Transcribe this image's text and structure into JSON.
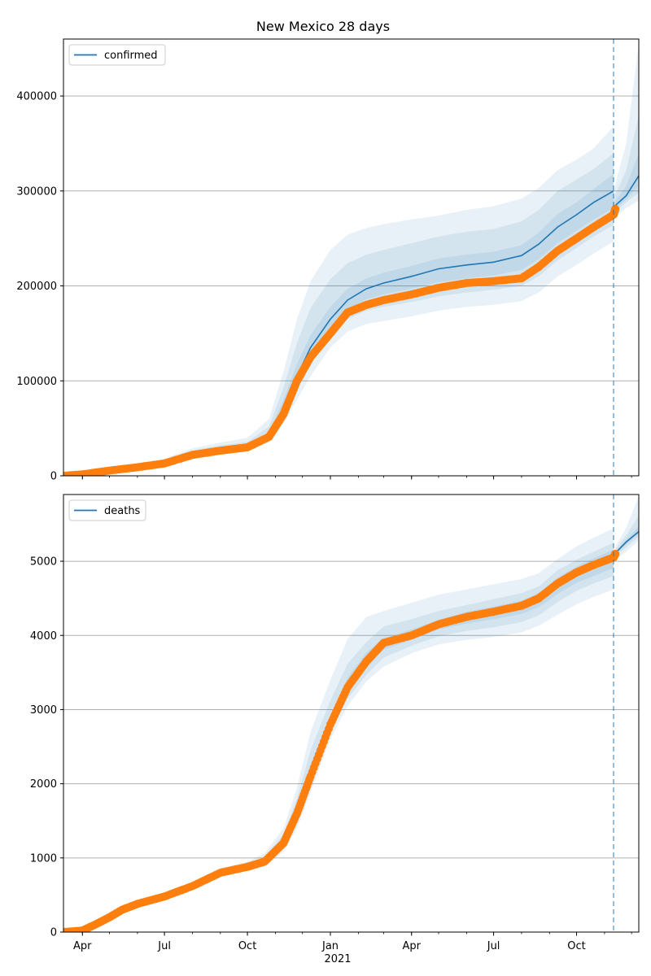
{
  "chart_data": {
    "type": "line",
    "title": "New Mexico 28 days",
    "x_axis": {
      "domain": [
        "2020-03-11",
        "2021-12-09"
      ],
      "tick_labels": [
        "Apr",
        "Jul",
        "Oct",
        "Jan",
        "Apr",
        "Jul",
        "Oct"
      ],
      "tick_dates": [
        "2020-04-01",
        "2020-07-01",
        "2020-10-01",
        "2021-01-01",
        "2021-04-01",
        "2021-07-01",
        "2021-10-01"
      ],
      "year_label": "2021",
      "forecast_start": "2021-11-11"
    },
    "panels": [
      {
        "legend": "confirmed",
        "legend_position": "upper left",
        "grid": "horizontal",
        "ylim": [
          0,
          460000
        ],
        "yticks": [
          0,
          100000,
          200000,
          300000,
          400000
        ],
        "ytick_labels": [
          "0",
          "100000",
          "200000",
          "300000",
          "400000"
        ],
        "model": {
          "dates": [
            "2020-03-11",
            "2020-04-01",
            "2020-05-01",
            "2020-06-01",
            "2020-07-01",
            "2020-08-01",
            "2020-09-01",
            "2020-10-01",
            "2020-10-25",
            "2020-11-10",
            "2020-11-25",
            "2020-12-10",
            "2021-01-01",
            "2021-01-20",
            "2021-02-10",
            "2021-03-01",
            "2021-04-01",
            "2021-05-01",
            "2021-06-01",
            "2021-07-01",
            "2021-08-01",
            "2021-08-20",
            "2021-09-10",
            "2021-10-01",
            "2021-10-20",
            "2021-11-11"
          ],
          "values": [
            0,
            1500,
            6000,
            9500,
            14000,
            23000,
            27500,
            31000,
            42000,
            72000,
            105000,
            135000,
            165000,
            185000,
            197000,
            203000,
            210000,
            218000,
            222000,
            225000,
            232000,
            244000,
            262000,
            275000,
            288000,
            300000
          ]
        },
        "forecast": {
          "dates": [
            "2021-11-11",
            "2021-11-25",
            "2021-12-09"
          ],
          "values": [
            283000,
            295000,
            316000
          ]
        },
        "observed": {
          "dates": [
            "2020-03-11",
            "2020-04-01",
            "2020-05-01",
            "2020-06-01",
            "2020-07-01",
            "2020-08-01",
            "2020-09-01",
            "2020-10-01",
            "2020-10-25",
            "2020-11-10",
            "2020-11-25",
            "2020-12-10",
            "2021-01-01",
            "2021-01-20",
            "2021-02-10",
            "2021-03-01",
            "2021-04-01",
            "2021-05-01",
            "2021-06-01",
            "2021-07-01",
            "2021-08-01",
            "2021-08-20",
            "2021-09-10",
            "2021-10-01",
            "2021-10-20",
            "2021-11-11",
            "2021-11-13"
          ],
          "values": [
            0,
            1500,
            5500,
            9000,
            13000,
            22000,
            26500,
            30000,
            41000,
            65000,
            100000,
            125000,
            150000,
            172000,
            180000,
            185000,
            191000,
            198000,
            203000,
            205000,
            208000,
            220000,
            237000,
            250000,
            262000,
            275000,
            281000
          ]
        },
        "bands": [
          {
            "lower": [
              0,
              800,
              4000,
              7500,
              12000,
              20000,
              24500,
              27500,
              36000,
              55000,
              80000,
              105000,
              135000,
              152000,
              160000,
              163000,
              168000,
              174000,
              178000,
              180000,
              184000,
              193000,
              210000,
              222000,
              234000,
              247000
            ],
            "upper": [
              0,
              2500,
              8500,
              13000,
              18000,
              29000,
              35000,
              40000,
              60000,
              110000,
              165000,
              205000,
              238000,
              254000,
              261000,
              265000,
              270000,
              274000,
              280000,
              284000,
              292000,
              303000,
              322000,
              333000,
              345000,
              368000
            ]
          },
          {
            "lower": [
              0,
              1000,
              4600,
              8200,
              12800,
              21000,
              25500,
              28800,
              38500,
              61000,
              90000,
              117000,
              148000,
              165000,
              174000,
              178000,
              183000,
              189000,
              193000,
              196000,
              200000,
              210000,
              227000,
              240000,
              252000,
              264000
            ],
            "upper": [
              0,
              2200,
              7600,
              11600,
              16800,
              26700,
              32000,
              35800,
              52000,
              93000,
              140000,
              177000,
              207000,
              224000,
              233000,
              238000,
              245000,
              252000,
              257000,
              260000,
              268000,
              280000,
              300000,
              312000,
              323000,
              340000
            ]
          },
          {
            "lower": [
              0,
              1200,
              5100,
              8700,
              13300,
              21800,
              26300,
              29800,
              40000,
              66000,
              97000,
              126000,
              156000,
              175000,
              186000,
              191000,
              197000,
              204000,
              208000,
              211000,
              217000,
              228000,
              245000,
              258000,
              270000,
              282000
            ],
            "upper": [
              0,
              1800,
              6900,
              10500,
              15300,
              24600,
              29300,
              32600,
              46000,
              80000,
              118000,
              148000,
              178000,
              197000,
              208000,
              214000,
              221000,
              229000,
              233000,
              236000,
              243000,
              256000,
              276000,
              288000,
              302000,
              318000
            ]
          }
        ],
        "forecast_bands": [
          {
            "lower": [
              270000,
              282000,
              290000
            ],
            "upper": [
              300000,
              350000,
              455000
            ]
          },
          {
            "lower": [
              276000,
              288000,
              298000
            ],
            "upper": [
              292000,
              322000,
              380000
            ]
          },
          {
            "lower": [
              279000,
              291000,
              305000
            ],
            "upper": [
              287000,
              305000,
              340000
            ]
          }
        ]
      },
      {
        "legend": "deaths",
        "legend_position": "upper left",
        "grid": "horizontal",
        "ylim": [
          0,
          5900
        ],
        "yticks": [
          0,
          1000,
          2000,
          3000,
          4000,
          5000
        ],
        "ytick_labels": [
          "0",
          "1000",
          "2000",
          "3000",
          "4000",
          "5000"
        ],
        "forecast": {
          "dates": [
            "2021-11-13",
            "2021-11-25",
            "2021-12-09"
          ],
          "values": [
            5110,
            5260,
            5400
          ]
        },
        "observed": {
          "dates": [
            "2020-03-11",
            "2020-04-01",
            "2020-04-15",
            "2020-05-01",
            "2020-05-15",
            "2020-06-01",
            "2020-07-01",
            "2020-08-01",
            "2020-09-01",
            "2020-10-01",
            "2020-10-20",
            "2020-11-10",
            "2020-11-25",
            "2020-12-10",
            "2021-01-01",
            "2021-01-20",
            "2021-02-10",
            "2021-03-01",
            "2021-04-01",
            "2021-05-01",
            "2021-06-01",
            "2021-07-01",
            "2021-08-01",
            "2021-08-20",
            "2021-09-10",
            "2021-10-01",
            "2021-10-20",
            "2021-11-11",
            "2021-11-13"
          ],
          "values": [
            0,
            20,
            100,
            200,
            300,
            380,
            480,
            620,
            800,
            880,
            950,
            1200,
            1600,
            2100,
            2800,
            3300,
            3650,
            3900,
            4000,
            4150,
            4250,
            4320,
            4400,
            4500,
            4700,
            4850,
            4950,
            5050,
            5100
          ]
        },
        "bands": [
          {
            "dates": [
              "2020-06-01",
              "2020-07-01",
              "2020-08-01",
              "2020-09-01",
              "2020-10-01",
              "2020-10-20",
              "2020-11-10",
              "2020-11-25",
              "2020-12-10",
              "2021-01-01",
              "2021-01-20",
              "2021-02-10",
              "2021-03-01",
              "2021-04-01",
              "2021-05-01",
              "2021-06-01",
              "2021-07-01",
              "2021-08-01",
              "2021-08-20",
              "2021-09-10",
              "2021-10-01",
              "2021-10-20",
              "2021-11-11"
            ],
            "lower": [
              380,
              465,
              590,
              755,
              830,
              880,
              1080,
              1400,
              1880,
              2600,
              3050,
              3380,
              3580,
              3760,
              3880,
              3940,
              3980,
              4040,
              4130,
              4280,
              4420,
              4520,
              4620
            ],
            "upper": [
              385,
              505,
              660,
              860,
              950,
              1060,
              1400,
              1950,
              2700,
              3400,
              3950,
              4250,
              4330,
              4440,
              4550,
              4620,
              4690,
              4760,
              4840,
              5030,
              5200,
              5320,
              5440
            ]
          },
          {
            "dates": [
              "2020-06-01",
              "2020-07-01",
              "2020-08-01",
              "2020-09-01",
              "2020-10-01",
              "2020-10-20",
              "2020-11-10",
              "2020-11-25",
              "2020-12-10",
              "2021-01-01",
              "2021-01-20",
              "2021-02-10",
              "2021-03-01",
              "2021-04-01",
              "2021-05-01",
              "2021-06-01",
              "2021-07-01",
              "2021-08-01",
              "2021-08-20",
              "2021-09-10",
              "2021-10-01",
              "2021-10-20",
              "2021-11-11"
            ],
            "lower": [
              380,
              472,
              602,
              775,
              852,
              912,
              1130,
              1480,
              1990,
              2690,
              3150,
              3470,
              3700,
              3860,
              3990,
              4060,
              4110,
              4180,
              4270,
              4450,
              4600,
              4700,
              4800
            ],
            "upper": [
              384,
              495,
              642,
              830,
              915,
              1010,
              1320,
              1800,
              2450,
              3120,
              3620,
              3910,
              4120,
              4220,
              4330,
              4410,
              4490,
              4570,
              4660,
              4880,
              5020,
              5130,
              5250
            ]
          },
          {
            "dates": [
              "2020-06-01",
              "2020-07-01",
              "2020-08-01",
              "2020-09-01",
              "2020-10-01",
              "2020-10-20",
              "2020-11-10",
              "2020-11-25",
              "2020-12-10",
              "2021-01-01",
              "2021-01-20",
              "2021-02-10",
              "2021-03-01",
              "2021-04-01",
              "2021-05-01",
              "2021-06-01",
              "2021-07-01",
              "2021-08-01",
              "2021-08-20",
              "2021-09-10",
              "2021-10-01",
              "2021-10-20",
              "2021-11-11"
            ],
            "lower": [
              381,
              476,
              610,
              785,
              865,
              932,
              1165,
              1540,
              2050,
              2740,
              3230,
              3560,
              3810,
              3940,
              4080,
              4160,
              4220,
              4290,
              4380,
              4560,
              4710,
              4800,
              4910
            ],
            "upper": [
              383,
              487,
              632,
              815,
              897,
              980,
              1250,
              1680,
              2250,
              2920,
              3430,
              3770,
              3960,
              4080,
              4210,
              4320,
              4390,
              4470,
              4570,
              4780,
              4930,
              5040,
              5160
            ]
          }
        ],
        "forecast_bands": [
          {
            "dates": [
              "2021-11-13",
              "2021-11-25",
              "2021-12-09"
            ],
            "lower": [
              5020,
              5130,
              5280
            ],
            "upper": [
              5200,
              5450,
              5880
            ]
          },
          {
            "dates": [
              "2021-11-13",
              "2021-11-25",
              "2021-12-09"
            ],
            "lower": [
              5060,
              5190,
              5330
            ],
            "upper": [
              5160,
              5350,
              5620
            ]
          },
          {
            "dates": [
              "2021-11-13",
              "2021-11-25",
              "2021-12-09"
            ],
            "lower": [
              5090,
              5230,
              5370
            ],
            "upper": [
              5130,
              5290,
              5470
            ]
          }
        ]
      }
    ],
    "colors": {
      "line": "#1f77b4",
      "observed": "#ff7f0e",
      "band": "#1f77b4",
      "grid": "#b0b0b0",
      "forecast_marker": "#1f77b4"
    }
  }
}
